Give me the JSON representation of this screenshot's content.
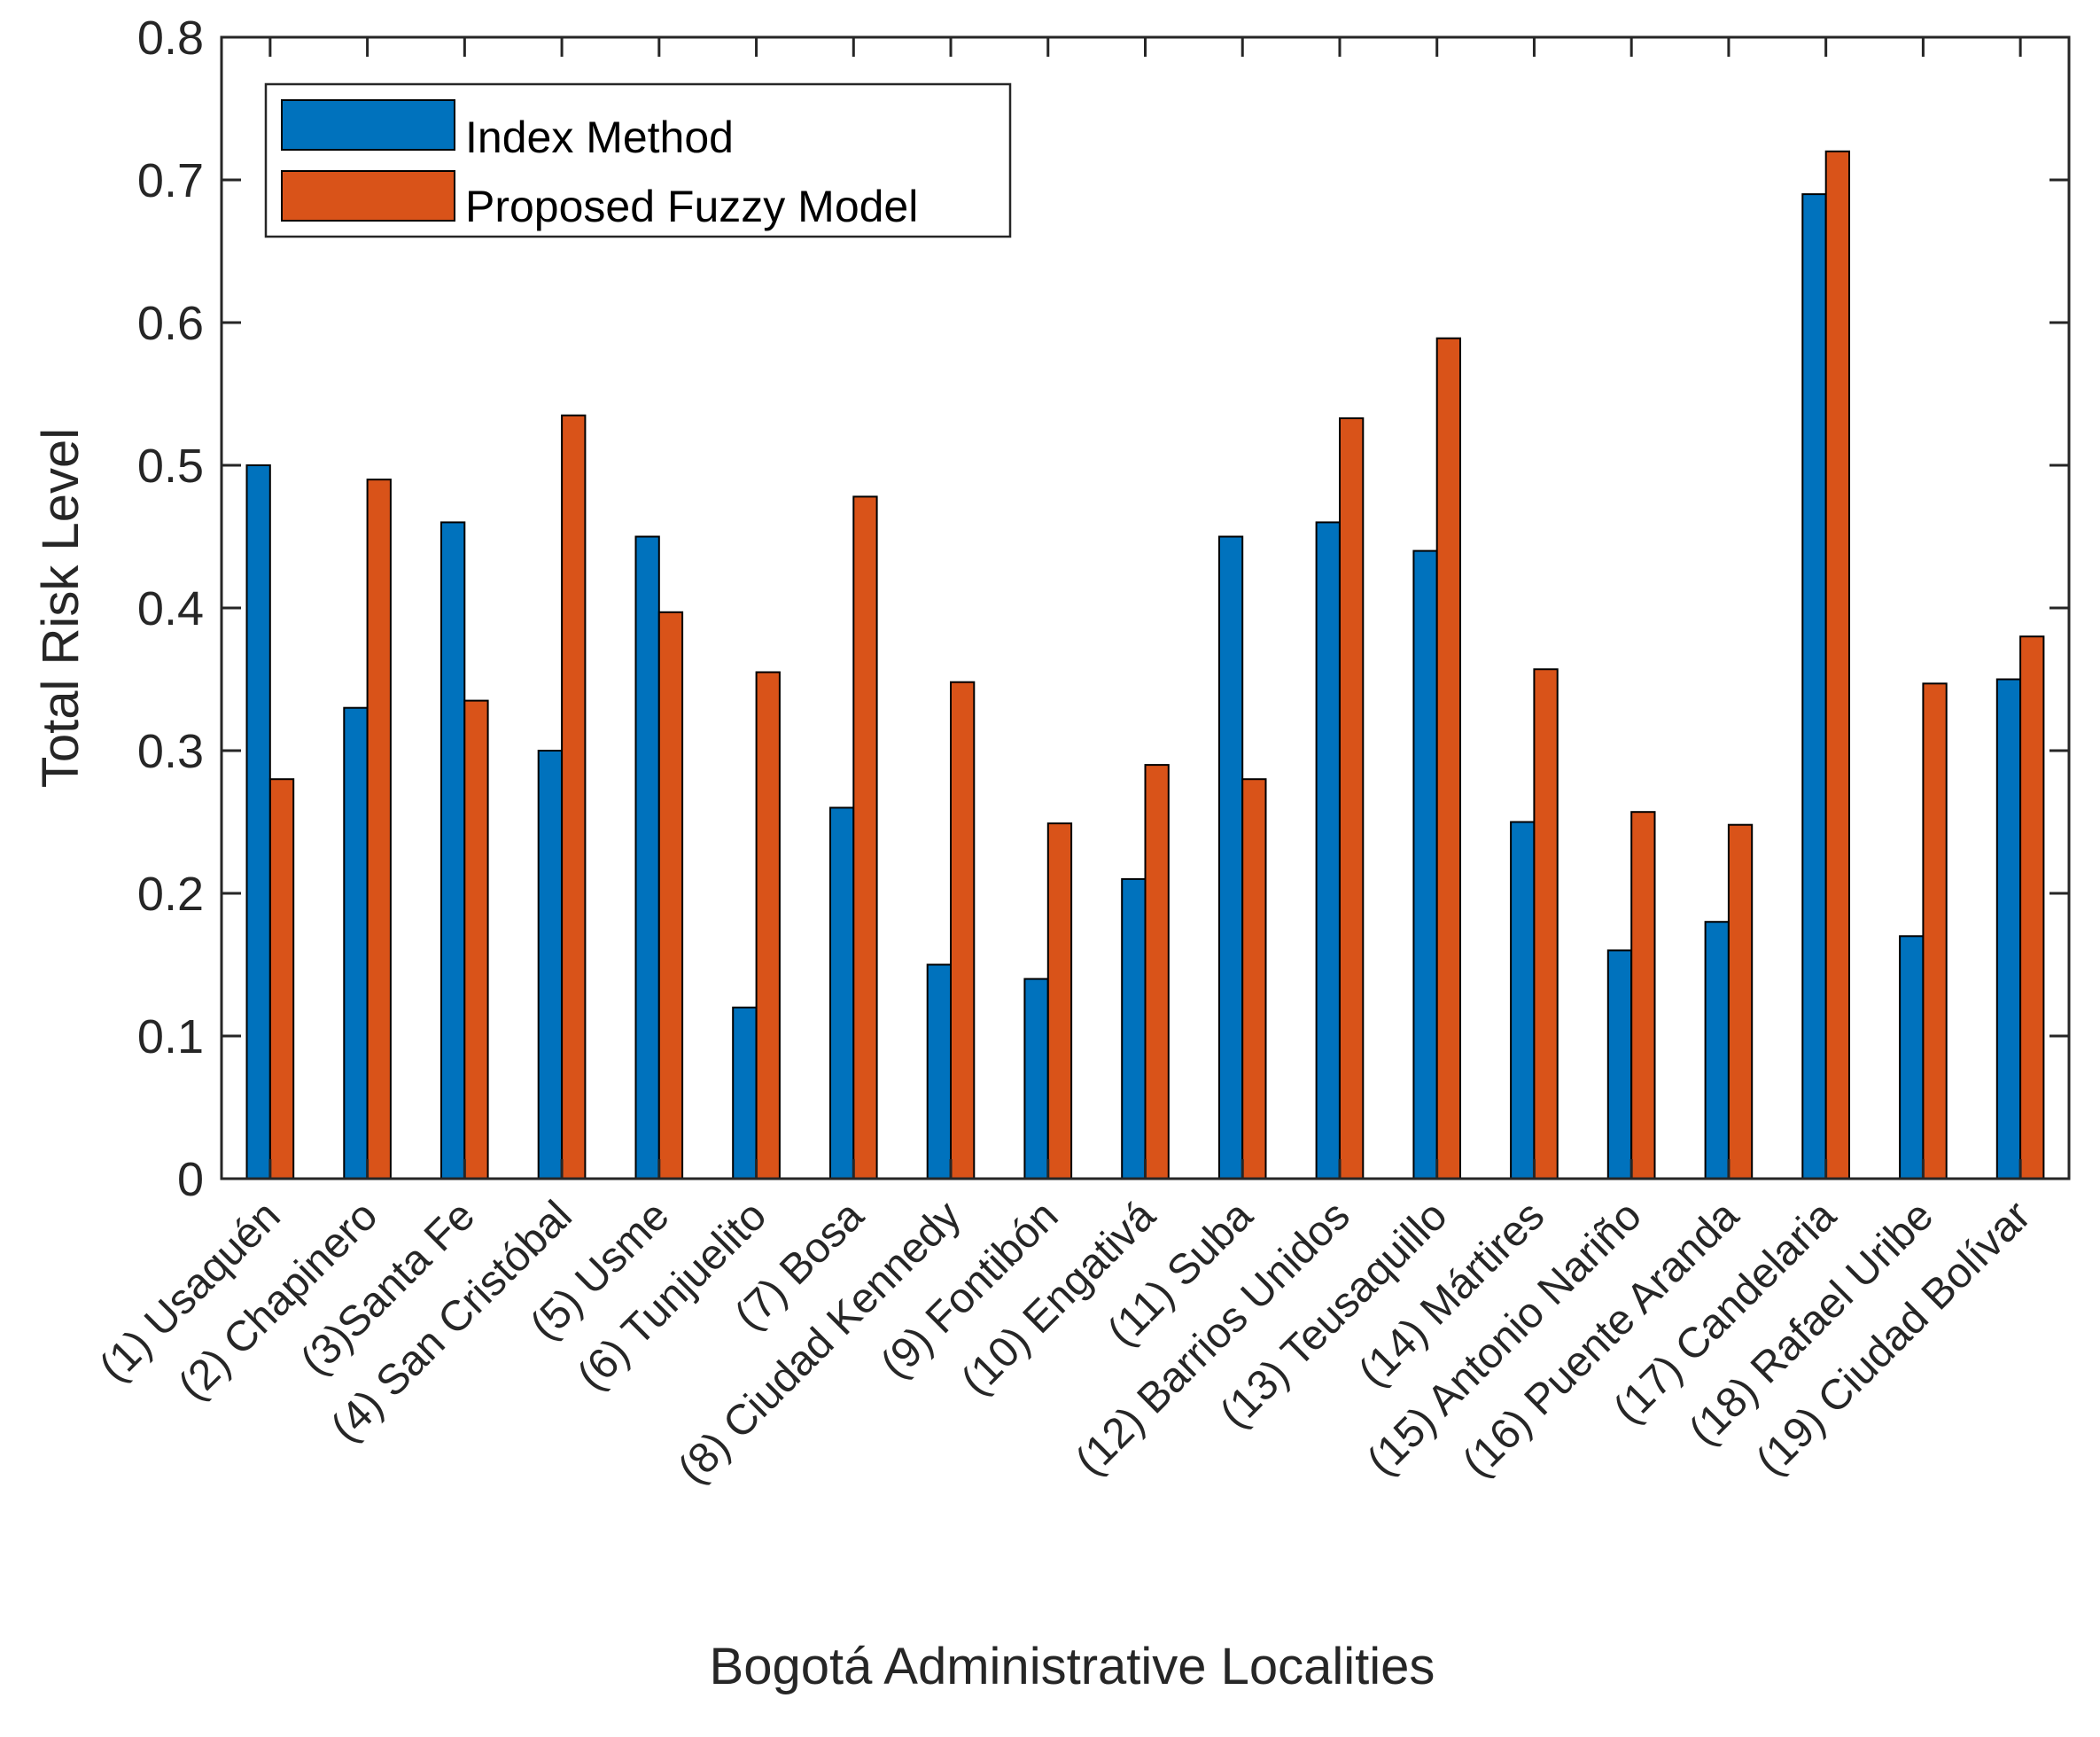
{
  "chart_data": {
    "type": "bar",
    "title": "",
    "xlabel": "Bogotá Administrative Localities",
    "ylabel": "Total Risk Level",
    "ylim": [
      0,
      0.8
    ],
    "yticks": [
      "0",
      "0.1",
      "0.2",
      "0.3",
      "0.4",
      "0.5",
      "0.6",
      "0.7",
      "0.8"
    ],
    "grid": false,
    "legend_position": "top-left",
    "categories": [
      "(1) Usaquén",
      "(2) Chapinero",
      "(3)Santa Fe",
      "(4) San Cristóbal",
      "(5) Usme",
      "(6) Tunjuelito",
      "(7) Bosa",
      "(8) Ciudad Kennedy",
      "(9) Fontibón",
      "(10) Engativá",
      "(11) Suba",
      "(12) Barrios Unidos",
      "(13) Teusaquillo",
      "(14) Mártires",
      "(15) Antonio Nariño",
      "(16) Puente Aranda",
      "(17) Candelaria",
      "(18) Rafael Uribe",
      "(19) Ciudad Bolívar"
    ],
    "series": [
      {
        "name": "Index Method",
        "color": "#0072BD",
        "values": [
          0.5,
          0.33,
          0.46,
          0.3,
          0.45,
          0.12,
          0.26,
          0.15,
          0.14,
          0.21,
          0.45,
          0.46,
          0.44,
          0.25,
          0.16,
          0.18,
          0.69,
          0.17,
          0.35
        ]
      },
      {
        "name": "Proposed Fuzzy Model",
        "color": "#D95319",
        "values": [
          0.28,
          0.49,
          0.335,
          0.535,
          0.397,
          0.355,
          0.478,
          0.348,
          0.249,
          0.29,
          0.28,
          0.533,
          0.589,
          0.357,
          0.257,
          0.248,
          0.72,
          0.347,
          0.38
        ]
      }
    ]
  }
}
